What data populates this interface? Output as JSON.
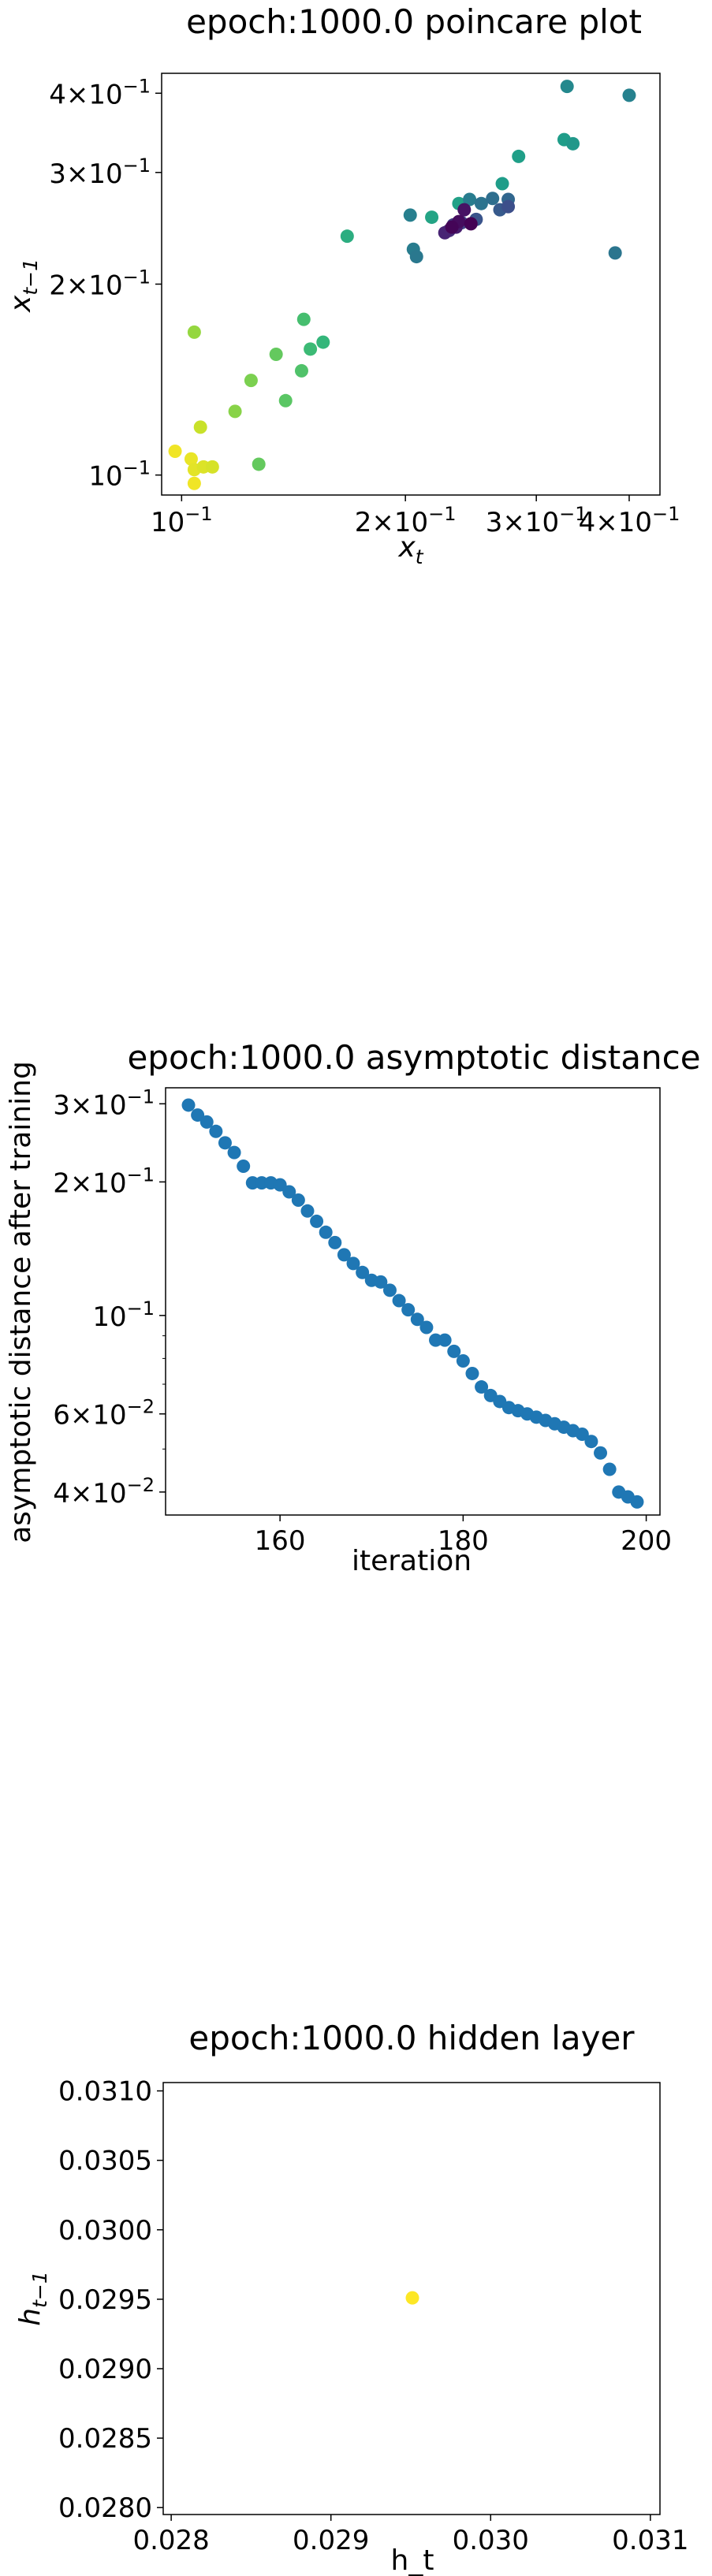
{
  "chart_data": [
    {
      "type": "scatter",
      "title": "epoch:1000.0 poincare plot",
      "xlabel_base": "x",
      "xlabel_sub": "t",
      "ylabel_base": "x",
      "ylabel_sub": "t−1",
      "xscale": "log",
      "yscale": "log",
      "xlim": [
        0.094,
        0.44
      ],
      "ylim": [
        0.093,
        0.43
      ],
      "x_ticks": [
        {
          "value": 0.1,
          "base": "10",
          "exp": "−1",
          "coef": ""
        },
        {
          "value": 0.2,
          "base": "10",
          "exp": "−1",
          "coef": "2×"
        },
        {
          "value": 0.3,
          "base": "10",
          "exp": "−1",
          "coef": "3×"
        },
        {
          "value": 0.4,
          "base": "10",
          "exp": "−1",
          "coef": "4×"
        }
      ],
      "y_ticks": [
        {
          "value": 0.1,
          "base": "10",
          "exp": "−1",
          "coef": ""
        },
        {
          "value": 0.2,
          "base": "10",
          "exp": "−1",
          "coef": "2×"
        },
        {
          "value": 0.3,
          "base": "10",
          "exp": "−1",
          "coef": "3×"
        },
        {
          "value": 0.4,
          "base": "10",
          "exp": "−1",
          "coef": "4×"
        }
      ],
      "colormap": "viridis",
      "points": [
        {
          "x": 0.098,
          "y": 0.109,
          "c": 0.98
        },
        {
          "x": 0.104,
          "y": 0.097,
          "c": 0.98
        },
        {
          "x": 0.103,
          "y": 0.106,
          "c": 0.97
        },
        {
          "x": 0.104,
          "y": 0.102,
          "c": 0.96
        },
        {
          "x": 0.107,
          "y": 0.103,
          "c": 0.95
        },
        {
          "x": 0.11,
          "y": 0.103,
          "c": 0.94
        },
        {
          "x": 0.106,
          "y": 0.119,
          "c": 0.92
        },
        {
          "x": 0.104,
          "y": 0.168,
          "c": 0.84
        },
        {
          "x": 0.118,
          "y": 0.126,
          "c": 0.82
        },
        {
          "x": 0.124,
          "y": 0.141,
          "c": 0.8
        },
        {
          "x": 0.127,
          "y": 0.104,
          "c": 0.76
        },
        {
          "x": 0.134,
          "y": 0.155,
          "c": 0.76
        },
        {
          "x": 0.138,
          "y": 0.131,
          "c": 0.74
        },
        {
          "x": 0.145,
          "y": 0.146,
          "c": 0.72
        },
        {
          "x": 0.146,
          "y": 0.176,
          "c": 0.7
        },
        {
          "x": 0.149,
          "y": 0.158,
          "c": 0.68
        },
        {
          "x": 0.155,
          "y": 0.162,
          "c": 0.66
        },
        {
          "x": 0.167,
          "y": 0.238,
          "c": 0.62
        },
        {
          "x": 0.217,
          "y": 0.255,
          "c": 0.58
        },
        {
          "x": 0.236,
          "y": 0.268,
          "c": 0.57
        },
        {
          "x": 0.27,
          "y": 0.288,
          "c": 0.55
        },
        {
          "x": 0.284,
          "y": 0.318,
          "c": 0.56
        },
        {
          "x": 0.327,
          "y": 0.338,
          "c": 0.55
        },
        {
          "x": 0.336,
          "y": 0.333,
          "c": 0.53
        },
        {
          "x": 0.33,
          "y": 0.41,
          "c": 0.47
        },
        {
          "x": 0.4,
          "y": 0.397,
          "c": 0.44
        },
        {
          "x": 0.203,
          "y": 0.257,
          "c": 0.43
        },
        {
          "x": 0.205,
          "y": 0.227,
          "c": 0.42
        },
        {
          "x": 0.207,
          "y": 0.221,
          "c": 0.4
        },
        {
          "x": 0.383,
          "y": 0.224,
          "c": 0.39
        },
        {
          "x": 0.244,
          "y": 0.272,
          "c": 0.42
        },
        {
          "x": 0.253,
          "y": 0.268,
          "c": 0.38
        },
        {
          "x": 0.262,
          "y": 0.273,
          "c": 0.36
        },
        {
          "x": 0.275,
          "y": 0.272,
          "c": 0.33
        },
        {
          "x": 0.268,
          "y": 0.262,
          "c": 0.28
        },
        {
          "x": 0.249,
          "y": 0.253,
          "c": 0.26
        },
        {
          "x": 0.275,
          "y": 0.265,
          "c": 0.24
        },
        {
          "x": 0.238,
          "y": 0.25,
          "c": 0.2
        },
        {
          "x": 0.232,
          "y": 0.248,
          "c": 0.17
        },
        {
          "x": 0.229,
          "y": 0.243,
          "c": 0.13
        },
        {
          "x": 0.226,
          "y": 0.241,
          "c": 0.1
        },
        {
          "x": 0.234,
          "y": 0.246,
          "c": 0.08
        },
        {
          "x": 0.24,
          "y": 0.262,
          "c": 0.05
        },
        {
          "x": 0.236,
          "y": 0.251,
          "c": 0.03
        },
        {
          "x": 0.231,
          "y": 0.246,
          "c": 0.01
        },
        {
          "x": 0.245,
          "y": 0.249,
          "c": 0.0
        }
      ]
    },
    {
      "type": "scatter",
      "title": "epoch:1000.0 asymptotic distance",
      "xlabel": "iteration",
      "ylabel": "asymptotic distance after training",
      "xscale": "linear",
      "yscale": "log",
      "xlim": [
        147.5,
        201.5
      ],
      "ylim": [
        0.0355,
        0.326
      ],
      "x_ticks": [
        160,
        180,
        200
      ],
      "y_ticks": [
        {
          "value": 0.04,
          "base": "10",
          "exp": "−2",
          "coef": "4×"
        },
        {
          "value": 0.06,
          "base": "10",
          "exp": "−2",
          "coef": "6×"
        },
        {
          "value": 0.1,
          "base": "10",
          "exp": "−1",
          "coef": ""
        },
        {
          "value": 0.2,
          "base": "10",
          "exp": "−1",
          "coef": "2×"
        },
        {
          "value": 0.3,
          "base": "10",
          "exp": "−1",
          "coef": "3×"
        }
      ],
      "color": "#1f77b4",
      "x": [
        150,
        151,
        152,
        153,
        154,
        155,
        156,
        157,
        158,
        159,
        160,
        161,
        162,
        163,
        164,
        165,
        166,
        167,
        168,
        169,
        170,
        171,
        172,
        173,
        174,
        175,
        176,
        177,
        178,
        179,
        180,
        181,
        182,
        183,
        184,
        185,
        186,
        187,
        188,
        189,
        190,
        191,
        192,
        193,
        194,
        195,
        196,
        197,
        198,
        199
      ],
      "y": [
        0.298,
        0.283,
        0.273,
        0.26,
        0.245,
        0.233,
        0.217,
        0.199,
        0.199,
        0.199,
        0.197,
        0.19,
        0.182,
        0.172,
        0.163,
        0.154,
        0.146,
        0.137,
        0.131,
        0.125,
        0.12,
        0.119,
        0.114,
        0.108,
        0.103,
        0.098,
        0.094,
        0.088,
        0.088,
        0.083,
        0.079,
        0.074,
        0.069,
        0.066,
        0.064,
        0.062,
        0.061,
        0.06,
        0.059,
        0.058,
        0.057,
        0.056,
        0.055,
        0.054,
        0.052,
        0.049,
        0.045,
        0.04,
        0.039,
        0.038
      ]
    },
    {
      "type": "scatter",
      "title": "epoch:1000.0 hidden layer",
      "xlabel": "h_t",
      "ylabel_base": "h",
      "ylabel_sub": "t−1",
      "xscale": "linear",
      "yscale": "linear",
      "xlim": [
        0.02795,
        0.03106
      ],
      "ylim": [
        0.02795,
        0.03106
      ],
      "x_ticks": [
        "0.028",
        "0.029",
        "0.030",
        "0.031"
      ],
      "y_ticks": [
        "0.0280",
        "0.0285",
        "0.0290",
        "0.0295",
        "0.0300",
        "0.0305",
        "0.0310"
      ],
      "points": [
        {
          "x": 0.02951,
          "y": 0.02951,
          "color": "#fde725"
        }
      ]
    }
  ]
}
